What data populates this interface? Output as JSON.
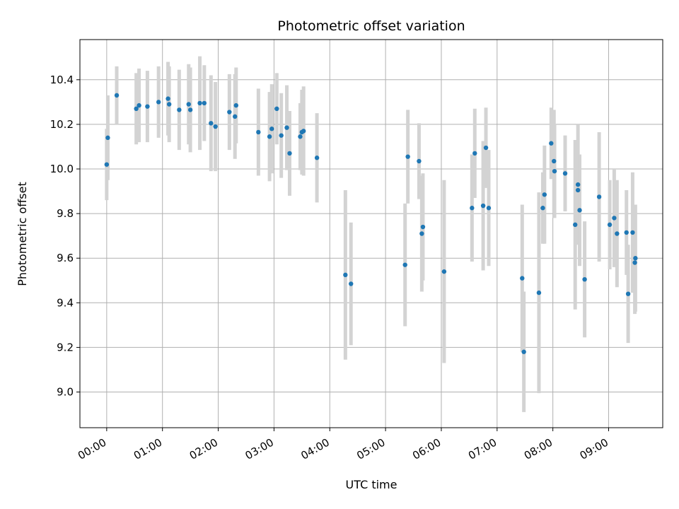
{
  "chart_data": {
    "type": "scatter",
    "title": "Photometric offset variation",
    "xlabel": "UTC time",
    "ylabel": "Photometric offset",
    "xlim": [
      -0.48,
      9.97
    ],
    "ylim": [
      8.84,
      10.58
    ],
    "grid": true,
    "x_ticks": [
      0,
      1,
      2,
      3,
      4,
      5,
      6,
      7,
      8,
      9
    ],
    "x_tick_labels": [
      "00:00",
      "01:00",
      "02:00",
      "03:00",
      "04:00",
      "05:00",
      "06:00",
      "07:00",
      "08:00",
      "09:00"
    ],
    "y_ticks": [
      9.0,
      9.2,
      9.4,
      9.6,
      9.8,
      10.0,
      10.2,
      10.4
    ],
    "y_tick_labels": [
      "9.0",
      "9.2",
      "9.4",
      "9.6",
      "9.8",
      "10.0",
      "10.2",
      "10.4"
    ],
    "colors": {
      "point": "#1f77b4",
      "errorbar": "#d3d3d3",
      "grid": "#b0b0b0"
    },
    "series": [
      {
        "name": "Photometric offset",
        "x": [
          0.0,
          0.02,
          0.18,
          0.53,
          0.58,
          0.73,
          0.93,
          1.1,
          1.12,
          1.3,
          1.47,
          1.5,
          1.67,
          1.75,
          1.87,
          1.95,
          2.2,
          2.3,
          2.32,
          2.72,
          2.92,
          2.96,
          3.05,
          3.13,
          3.23,
          3.28,
          3.47,
          3.5,
          3.53,
          3.77,
          4.28,
          4.38,
          5.35,
          5.4,
          5.6,
          5.65,
          5.67,
          6.05,
          6.55,
          6.6,
          6.75,
          6.8,
          6.85,
          7.45,
          7.48,
          7.75,
          7.82,
          7.85,
          7.97,
          8.02,
          8.03,
          8.22,
          8.4,
          8.45,
          8.45,
          8.48,
          8.57,
          8.83,
          9.02,
          9.1,
          9.15,
          9.32,
          9.35,
          9.43,
          9.47,
          9.48
        ],
        "y": [
          10.02,
          10.14,
          10.33,
          10.27,
          10.285,
          10.28,
          10.3,
          10.315,
          10.29,
          10.265,
          10.29,
          10.265,
          10.295,
          10.295,
          10.205,
          10.19,
          10.255,
          10.235,
          10.285,
          10.165,
          10.145,
          10.18,
          10.27,
          10.15,
          10.185,
          10.07,
          10.145,
          10.165,
          10.17,
          10.05,
          9.525,
          9.485,
          9.57,
          10.055,
          10.035,
          9.71,
          9.74,
          9.54,
          9.825,
          10.07,
          9.835,
          10.095,
          9.825,
          9.51,
          9.18,
          9.445,
          9.825,
          9.885,
          10.115,
          10.035,
          9.99,
          9.98,
          9.75,
          9.93,
          9.905,
          9.815,
          9.505,
          9.875,
          9.75,
          9.78,
          9.71,
          9.715,
          9.44,
          9.715,
          9.58,
          9.6
        ],
        "yerr": [
          0.16,
          0.19,
          0.13,
          0.16,
          0.165,
          0.16,
          0.16,
          0.165,
          0.17,
          0.18,
          0.18,
          0.19,
          0.21,
          0.17,
          0.215,
          0.2,
          0.17,
          0.19,
          0.17,
          0.195,
          0.2,
          0.2,
          0.16,
          0.19,
          0.19,
          0.19,
          0.15,
          0.19,
          0.2,
          0.2,
          0.38,
          0.275,
          0.275,
          0.21,
          0.17,
          0.26,
          0.24,
          0.41,
          0.24,
          0.2,
          0.29,
          0.18,
          0.26,
          0.33,
          0.27,
          0.45,
          0.16,
          0.22,
          0.16,
          0.23,
          0.21,
          0.17,
          0.38,
          0.27,
          0.15,
          0.25,
          0.26,
          0.29,
          0.2,
          0.22,
          0.24,
          0.19,
          0.22,
          0.27,
          0.23,
          0.24
        ]
      }
    ]
  }
}
